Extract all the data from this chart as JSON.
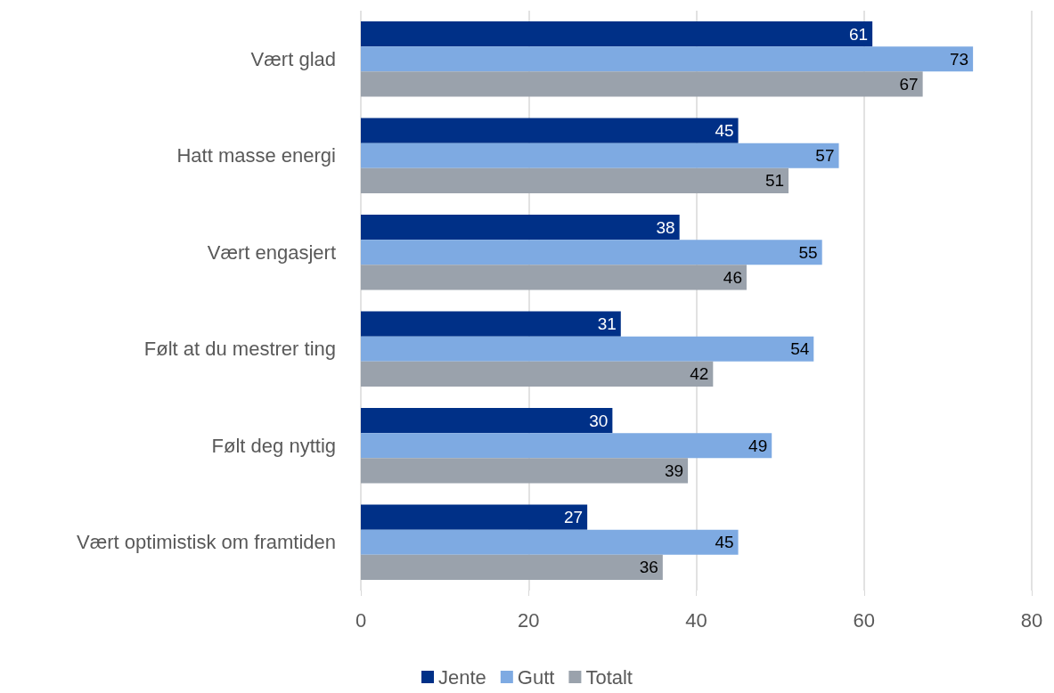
{
  "chart_data": {
    "type": "bar",
    "orientation": "horizontal",
    "categories": [
      "Vært glad",
      "Hatt masse energi",
      "Vært engasjert",
      "Følt at du mestrer ting",
      "Følt deg nyttig",
      "Vært optimistisk om framtiden"
    ],
    "series": [
      {
        "name": "Jente",
        "color": "#003087",
        "values": [
          61,
          45,
          38,
          31,
          30,
          27
        ]
      },
      {
        "name": "Gutt",
        "color": "#7eaae2",
        "values": [
          73,
          57,
          55,
          54,
          49,
          45
        ]
      },
      {
        "name": "Totalt",
        "color": "#9aa2ac",
        "values": [
          67,
          51,
          46,
          42,
          39,
          36
        ]
      }
    ],
    "xlim": [
      0,
      80
    ],
    "xticks": [
      0,
      20,
      40,
      60,
      80
    ],
    "grid": "x",
    "legend": "bottom",
    "data_labels": true
  }
}
